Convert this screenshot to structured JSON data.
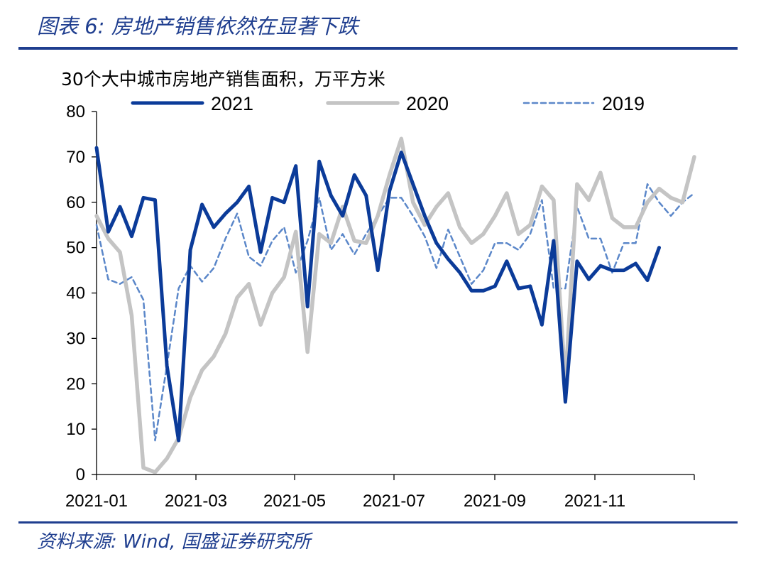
{
  "header": {
    "figure_title": "图表 6:  房地产销售依然在显著下跌"
  },
  "footer": {
    "source": "资料来源:  Wind,  国盛证券研究所"
  },
  "colors": {
    "brand": "#1F3E8F",
    "s2021": "#0B3B99",
    "s2020": "#C4C4C4",
    "s2019": "#5B87C9"
  },
  "chart_data": {
    "type": "line",
    "title": "30个大中城市房地产销售面积，万平方米",
    "xlabel": "",
    "ylabel": "",
    "ylim": [
      0,
      80
    ],
    "yticks": [
      0,
      10,
      20,
      30,
      40,
      50,
      60,
      70,
      80
    ],
    "xticks": [
      "2021-01",
      "2021-03",
      "2021-05",
      "2021-07",
      "2021-09",
      "2021-11"
    ],
    "legend_position": "top",
    "grid": false,
    "week_count": 52,
    "series": [
      {
        "name": "2021",
        "style": "solid-thick",
        "values": [
          72,
          53.5,
          59,
          52.5,
          61,
          60.5,
          24,
          7.5,
          49.5,
          59.5,
          54.5,
          57.5,
          60,
          63.5,
          49,
          61,
          60,
          68,
          37,
          69,
          61.5,
          57,
          66,
          61.5,
          45,
          62.5,
          71,
          64,
          57,
          51,
          47.5,
          44.5,
          40.5,
          40.5,
          41.5,
          47,
          41,
          41.5,
          33,
          51.5,
          16,
          47,
          43,
          46,
          45,
          45,
          46.5,
          42.8,
          50
        ]
      },
      {
        "name": "2020",
        "style": "solid-light",
        "values": [
          57,
          52,
          49,
          35,
          1.5,
          0.5,
          3.5,
          8,
          17,
          23,
          26,
          31,
          39,
          42,
          33,
          40,
          43.5,
          53.5,
          27,
          53,
          51,
          59,
          51.5,
          51,
          57,
          66,
          74,
          60,
          55,
          59,
          62,
          54.5,
          51,
          53,
          57,
          62,
          53,
          55,
          63.5,
          60.5,
          20,
          64,
          60.5,
          66.5,
          56.5,
          54.5,
          54.5,
          60,
          63,
          61,
          60,
          70
        ]
      },
      {
        "name": "2019",
        "style": "dashed",
        "values": [
          55,
          43,
          42,
          43.5,
          38.5,
          7.5,
          24,
          41,
          46,
          42.5,
          45.5,
          52,
          57.5,
          48,
          46,
          51.5,
          54.5,
          44.5,
          51.5,
          61,
          49.5,
          53,
          48.5,
          53,
          57,
          61,
          61,
          57,
          52.5,
          45.5,
          54,
          48,
          42,
          45,
          51,
          51,
          49.5,
          53,
          60.5,
          41,
          41,
          59,
          52,
          52,
          44.5,
          51,
          51,
          64,
          60,
          57,
          60,
          62
        ]
      }
    ]
  }
}
